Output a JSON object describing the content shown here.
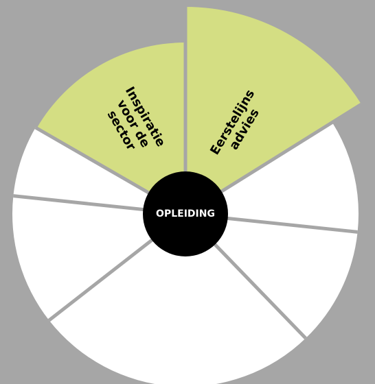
{
  "diagram": {
    "center_label": "OPLEIDING",
    "segments": [
      {
        "id": "eerstelijns-advies",
        "lines": [
          "Eerstelijns",
          "advies"
        ],
        "fill": "#d4de83",
        "highlighted": true
      },
      {
        "id": "right-upper",
        "lines": [],
        "fill": "#ffffff",
        "highlighted": false
      },
      {
        "id": "right-lower",
        "lines": [],
        "fill": "#ffffff",
        "highlighted": false
      },
      {
        "id": "bottom",
        "lines": [],
        "fill": "#ffffff",
        "highlighted": false
      },
      {
        "id": "left-lower",
        "lines": [],
        "fill": "#ffffff",
        "highlighted": false
      },
      {
        "id": "left-upper",
        "lines": [],
        "fill": "#ffffff",
        "highlighted": false
      },
      {
        "id": "inspiratie-voor-de-sector",
        "lines": [
          "Inspiratie",
          "voor de",
          "sector"
        ],
        "fill": "#d4de83",
        "highlighted": true
      }
    ],
    "colors": {
      "background": "#a6a6a6",
      "highlight": "#d4de83",
      "segment": "#ffffff",
      "separator": "#a6a6a6",
      "hub": "#000000",
      "hub_text": "#ffffff"
    }
  }
}
